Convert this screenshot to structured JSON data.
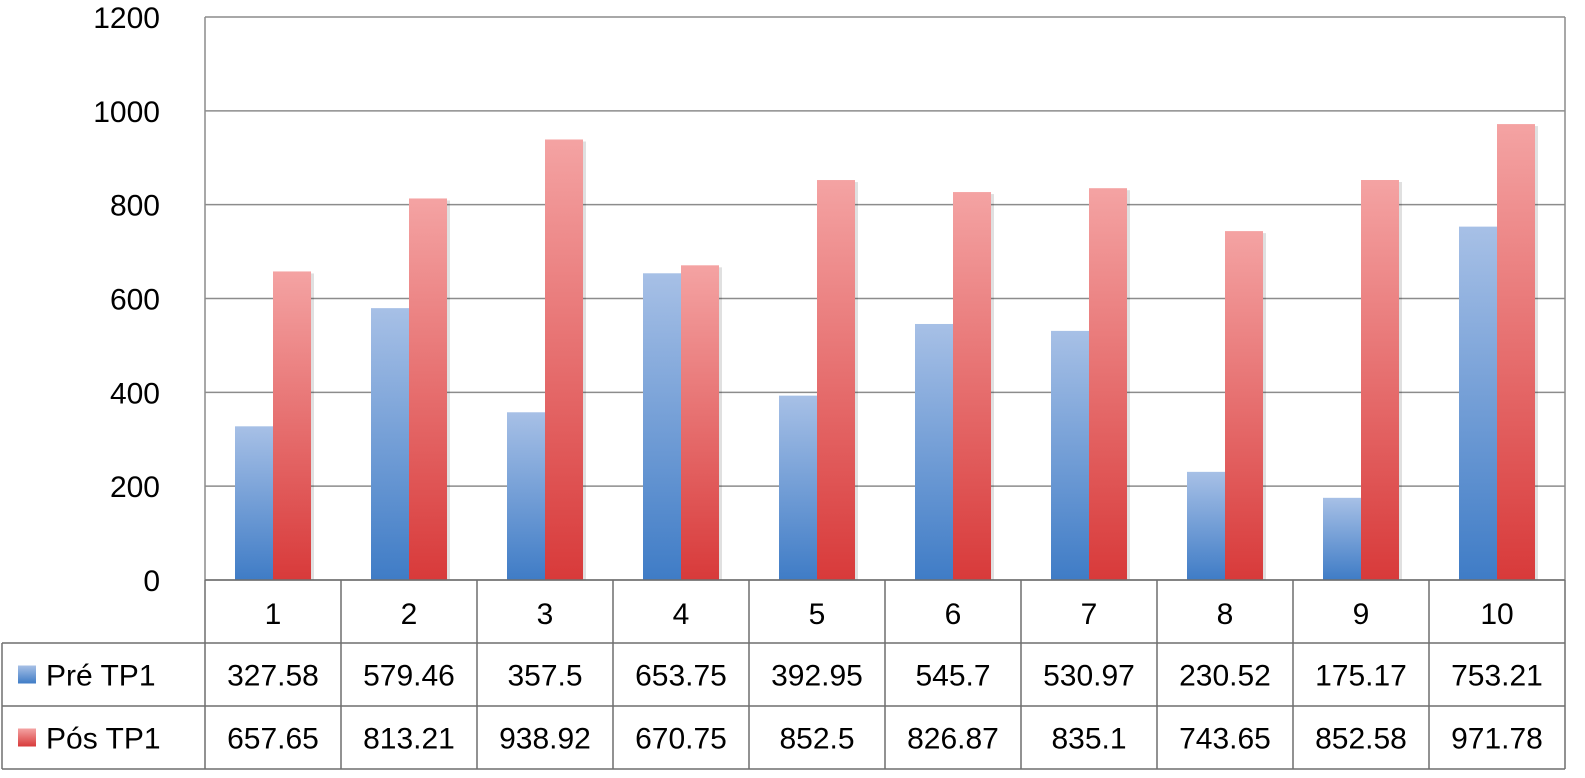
{
  "chart_data": {
    "type": "bar",
    "categories": [
      "1",
      "2",
      "3",
      "4",
      "5",
      "6",
      "7",
      "8",
      "9",
      "10"
    ],
    "series": [
      {
        "name": "Pré TP1",
        "values": [
          327.58,
          579.46,
          357.5,
          653.75,
          392.95,
          545.7,
          530.97,
          230.52,
          175.17,
          753.21
        ],
        "labels": [
          "327.58",
          "579.46",
          "357.5",
          "653.75",
          "392.95",
          "545.7",
          "530.97",
          "230.52",
          "175.17",
          "753.21"
        ],
        "color_top": "#a7c0e6",
        "color_bottom": "#3f7cc6"
      },
      {
        "name": "Pós TP1",
        "values": [
          657.65,
          813.21,
          938.92,
          670.75,
          852.5,
          826.87,
          835.1,
          743.65,
          852.58,
          971.78
        ],
        "labels": [
          "657.65",
          "813.21",
          "938.92",
          "670.75",
          "852.5",
          "826.87",
          "835.1",
          "743.65",
          "852.58",
          "971.78"
        ],
        "color_top": "#f4a3a3",
        "color_bottom": "#d83a3a"
      }
    ],
    "y_ticks": [
      "0",
      "200",
      "400",
      "600",
      "800",
      "1000",
      "1200"
    ],
    "ylim": [
      0,
      1200
    ],
    "grid": true,
    "data_table": true,
    "legend": "data-table-rows"
  }
}
